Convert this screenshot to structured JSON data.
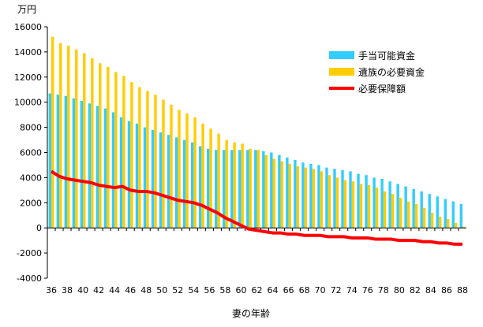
{
  "chart_data": {
    "type": "bar",
    "ylabel": "万円",
    "xlabel": "妻の年齢",
    "ylim": [
      -4000,
      16000
    ],
    "yticks": [
      -4000,
      -2000,
      0,
      2000,
      4000,
      6000,
      8000,
      10000,
      12000,
      14000,
      16000
    ],
    "x": [
      36,
      37,
      38,
      39,
      40,
      41,
      42,
      43,
      44,
      45,
      46,
      47,
      48,
      49,
      50,
      51,
      52,
      53,
      54,
      55,
      56,
      57,
      58,
      59,
      60,
      61,
      62,
      63,
      64,
      65,
      66,
      67,
      68,
      69,
      70,
      71,
      72,
      73,
      74,
      75,
      76,
      77,
      78,
      79,
      80,
      81,
      82,
      83,
      84,
      85,
      86,
      87,
      88
    ],
    "xtick_labels": [
      36,
      38,
      40,
      42,
      44,
      46,
      48,
      50,
      52,
      54,
      56,
      58,
      60,
      62,
      64,
      66,
      68,
      70,
      72,
      74,
      76,
      78,
      80,
      82,
      84,
      86,
      88
    ],
    "legend_position": "top-right",
    "colors": {
      "available": "#33ccff",
      "required": "#ffcc00",
      "coverage": "#ff0000"
    },
    "series": [
      {
        "name": "手当可能資金",
        "kind": "bar",
        "values": [
          10700,
          10600,
          10500,
          10300,
          10100,
          9900,
          9700,
          9500,
          9200,
          8800,
          8500,
          8300,
          8000,
          7800,
          7600,
          7400,
          7200,
          7000,
          6800,
          6500,
          6300,
          6200,
          6200,
          6200,
          6200,
          6200,
          6200,
          6100,
          6000,
          5800,
          5600,
          5400,
          5200,
          5100,
          5000,
          4800,
          4700,
          4600,
          4500,
          4300,
          4200,
          4000,
          3900,
          3700,
          3500,
          3300,
          3100,
          2900,
          2700,
          2500,
          2300,
          2100,
          1900
        ]
      },
      {
        "name": "遺族の必要資金",
        "kind": "bar",
        "values": [
          15200,
          14700,
          14500,
          14200,
          13900,
          13500,
          13100,
          12800,
          12400,
          12100,
          11600,
          11200,
          10900,
          10600,
          10200,
          9800,
          9400,
          9100,
          8800,
          8300,
          7900,
          7500,
          7000,
          6800,
          6700,
          6300,
          6200,
          5800,
          5500,
          5300,
          5100,
          4900,
          4800,
          4700,
          4500,
          4200,
          4000,
          3800,
          3700,
          3500,
          3400,
          3200,
          2900,
          2700,
          2400,
          2100,
          1900,
          1600,
          1200,
          900,
          700,
          400,
          100
        ]
      },
      {
        "name": "必要保障額",
        "kind": "line",
        "values": [
          4500,
          4100,
          3900,
          3800,
          3700,
          3600,
          3400,
          3300,
          3200,
          3300,
          3000,
          2900,
          2900,
          2800,
          2600,
          2400,
          2200,
          2100,
          2000,
          1800,
          1500,
          1200,
          800,
          500,
          200,
          -100,
          -200,
          -300,
          -400,
          -400,
          -500,
          -500,
          -600,
          -600,
          -600,
          -700,
          -700,
          -700,
          -800,
          -800,
          -800,
          -900,
          -900,
          -900,
          -1000,
          -1000,
          -1000,
          -1100,
          -1100,
          -1200,
          -1200,
          -1300,
          -1300
        ]
      }
    ]
  }
}
